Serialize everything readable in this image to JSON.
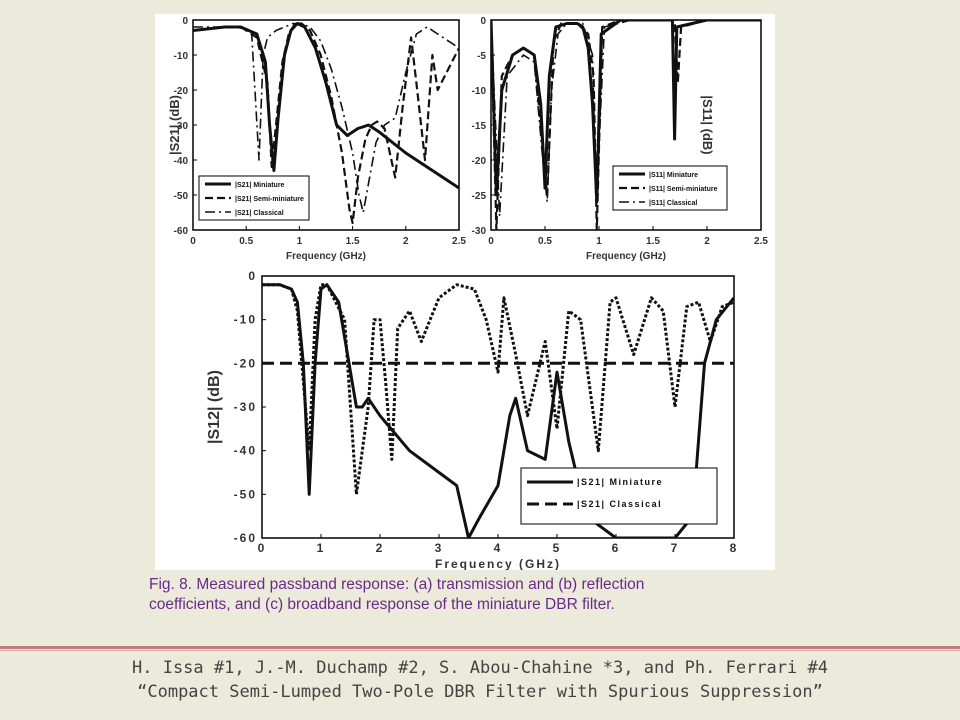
{
  "caption": {
    "line1": "Fig. 8. Measured passband response: (a) transmission and (b) reflection",
    "line2": "coefficients, and (c) broadband response of the miniature DBR filter."
  },
  "authors": {
    "line1": "H. Issa #1, J.-M. Duchamp #2, S. Abou-Chahine *3, and Ph. Ferrari #4",
    "line2": "“Compact Semi-Lumped Two-Pole DBR Filter with Spurious Suppression”"
  },
  "colors": {
    "background": "#ebeadb",
    "caption": "#6a2a8a",
    "divider": "#c47a7a",
    "authors": "#444444"
  },
  "chart_data": [
    {
      "id": "a",
      "type": "line",
      "xlabel": "Frequency (GHz)",
      "ylabel": "|S21| (dB)",
      "xlim": [
        0,
        2.5
      ],
      "ylim": [
        -60,
        0
      ],
      "xticks": [
        "0",
        "0.5",
        "1",
        "1.5",
        "2",
        "2.5"
      ],
      "yticks": [
        "0",
        "-10",
        "-20",
        "-30",
        "-40",
        "-50",
        "-60"
      ],
      "legend": {
        "position": "bottom-left",
        "entries": [
          "|S21| Miniature",
          "|S21| Semi-miniature",
          "|S21| Classical"
        ]
      },
      "series": [
        {
          "name": "|S21| Miniature",
          "style": "solid",
          "x": [
            0,
            0.3,
            0.45,
            0.6,
            0.68,
            0.72,
            0.76,
            0.8,
            0.86,
            0.92,
            0.98,
            1.05,
            1.15,
            1.25,
            1.35,
            1.45,
            1.55,
            1.65,
            1.75,
            2.0,
            2.25,
            2.5
          ],
          "y": [
            -3,
            -2,
            -2,
            -4,
            -12,
            -30,
            -43,
            -28,
            -10,
            -3,
            -1,
            -2,
            -8,
            -18,
            -30,
            -33,
            -31,
            -30,
            -32,
            -38,
            -43,
            -48
          ]
        },
        {
          "name": "|S21| Semi-miniature",
          "style": "dash",
          "x": [
            0,
            0.3,
            0.45,
            0.6,
            0.7,
            0.74,
            0.78,
            0.84,
            0.9,
            0.96,
            1.02,
            1.1,
            1.2,
            1.3,
            1.4,
            1.47,
            1.5,
            1.55,
            1.62,
            1.68,
            1.73,
            1.8,
            1.9,
            1.97,
            2.05,
            2.1,
            2.18,
            2.25,
            2.3,
            2.5
          ],
          "y": [
            -3,
            -2,
            -2,
            -5,
            -18,
            -42,
            -30,
            -12,
            -4,
            -1,
            -1,
            -3,
            -10,
            -22,
            -38,
            -54,
            -58,
            -45,
            -34,
            -30,
            -29,
            -31,
            -45,
            -25,
            -5,
            -18,
            -40,
            -10,
            -20,
            -8
          ]
        },
        {
          "name": "|S21| Classical",
          "style": "dashdot",
          "x": [
            0,
            0.4,
            0.55,
            0.62,
            0.66,
            0.7,
            0.78,
            0.86,
            0.94,
            1.0,
            1.1,
            1.2,
            1.3,
            1.4,
            1.5,
            1.56,
            1.6,
            1.66,
            1.72,
            1.8,
            1.9,
            2.0,
            2.1,
            2.2,
            2.3,
            2.5
          ],
          "y": [
            -2,
            -2,
            -3,
            -40,
            -10,
            -5,
            -3,
            -2,
            -1,
            -1,
            -2,
            -6,
            -14,
            -25,
            -38,
            -50,
            -55,
            -45,
            -35,
            -30,
            -28,
            -15,
            -4,
            -2,
            -4,
            -8
          ]
        }
      ]
    },
    {
      "id": "b",
      "type": "line",
      "xlabel": "Frequency (GHz)",
      "ylabel": "|S11| (dB)",
      "xlim": [
        0,
        2.5
      ],
      "ylim": [
        -30,
        0
      ],
      "xticks": [
        "0",
        "0.5",
        "1",
        "1.5",
        "2",
        "2.5"
      ],
      "yticks": [
        "0",
        "-5",
        "-10",
        "-15",
        "-20",
        "-25",
        "-30"
      ],
      "legend": {
        "position": "bottom-right",
        "entries": [
          "|S11| Miniature",
          "|S11| Semi-miniature",
          "|S11| Classical"
        ]
      },
      "series": [
        {
          "name": "|S11| Miniature",
          "style": "solid",
          "x": [
            0,
            0.02,
            0.05,
            0.1,
            0.2,
            0.3,
            0.4,
            0.46,
            0.5,
            0.54,
            0.6,
            0.7,
            0.8,
            0.85,
            0.9,
            0.94,
            0.98,
            1.02,
            1.2,
            1.5,
            1.68,
            1.7,
            1.72,
            2.0,
            2.5
          ],
          "y": [
            0,
            -10,
            -25,
            -10,
            -5,
            -4,
            -5,
            -12,
            -24,
            -8,
            -1,
            -0.5,
            -0.5,
            -1,
            -4,
            -12,
            -26,
            -2,
            0,
            0,
            0,
            -17,
            -1,
            0,
            0
          ]
        },
        {
          "name": "|S11| Semi-miniature",
          "style": "dash",
          "x": [
            0,
            0.05,
            0.1,
            0.2,
            0.3,
            0.4,
            0.46,
            0.52,
            0.58,
            0.65,
            0.8,
            0.9,
            0.95,
            0.98,
            1.03,
            1.2,
            1.5,
            1.7,
            1.73,
            1.76,
            2.0,
            2.5
          ],
          "y": [
            0,
            -30,
            -8,
            -5,
            -4,
            -5,
            -15,
            -25,
            -3,
            -0.5,
            -0.5,
            -2,
            -8,
            -30,
            -1,
            0,
            0,
            0,
            -9,
            -1,
            0,
            0
          ]
        },
        {
          "name": "|S11| Classical",
          "style": "dashdot",
          "x": [
            0,
            0.08,
            0.15,
            0.3,
            0.4,
            0.48,
            0.52,
            0.56,
            0.62,
            0.7,
            0.85,
            0.94,
            0.97,
            1.0,
            1.05,
            1.3,
            1.5,
            2.0,
            2.4,
            2.5
          ],
          "y": [
            0,
            -28,
            -8,
            -5,
            -6,
            -20,
            -26,
            -10,
            -2,
            -0.5,
            -0.5,
            -5,
            -24,
            -18,
            -1,
            0,
            0,
            0,
            0,
            0
          ]
        }
      ]
    },
    {
      "id": "c",
      "type": "line",
      "xlabel": "Frequency (GHz)",
      "ylabel": "|S12| (dB)",
      "xlim": [
        0,
        8
      ],
      "ylim": [
        -60,
        0
      ],
      "xticks": [
        "0",
        "1",
        "2",
        "3",
        "4",
        "5",
        "6",
        "7",
        "8"
      ],
      "yticks": [
        "0",
        "-10",
        "-20",
        "-30",
        "-40",
        "-50",
        "-60"
      ],
      "legend": {
        "position": "bottom-right",
        "entries": [
          "|S21| Miniature",
          "|S21| Classical"
        ]
      },
      "series": [
        {
          "name": "|S21| Miniature",
          "style": "solid",
          "x": [
            0,
            0.3,
            0.5,
            0.6,
            0.7,
            0.75,
            0.8,
            0.9,
            1.0,
            1.1,
            1.3,
            1.5,
            1.6,
            1.7,
            1.8,
            2.0,
            2.5,
            3.0,
            3.3,
            3.5,
            3.7,
            4.0,
            4.2,
            4.3,
            4.5,
            4.8,
            5.0,
            5.2,
            5.5,
            6.0,
            6.5,
            7.0,
            7.3,
            7.5,
            7.7,
            8.0
          ],
          "y": [
            -2,
            -2,
            -3,
            -6,
            -20,
            -35,
            -50,
            -20,
            -3,
            -2,
            -6,
            -22,
            -30,
            -30,
            -28,
            -32,
            -40,
            -45,
            -48,
            -60,
            -55,
            -48,
            -32,
            -28,
            -40,
            -42,
            -22,
            -38,
            -55,
            -60,
            -60,
            -60,
            -55,
            -20,
            -10,
            -5
          ]
        },
        {
          "name": "|S21| Classical",
          "style": "dash-heavy",
          "x": [
            0,
            8
          ],
          "y": [
            -20,
            -20
          ]
        }
      ],
      "overlay_curve": {
        "style": "dotted-heavy",
        "x": [
          0,
          0.3,
          0.5,
          0.6,
          0.8,
          0.9,
          1.0,
          1.1,
          1.4,
          1.6,
          1.8,
          1.9,
          2.0,
          2.1,
          2.2,
          2.3,
          2.5,
          2.7,
          3.0,
          3.3,
          3.6,
          3.8,
          4.0,
          4.1,
          4.3,
          4.5,
          4.8,
          5.0,
          5.2,
          5.4,
          5.7,
          5.9,
          6.0,
          6.3,
          6.6,
          6.8,
          7.0,
          7.2,
          7.4,
          7.6,
          7.8,
          8.0
        ],
        "y": [
          -2,
          -2,
          -3,
          -8,
          -40,
          -10,
          -2,
          -2,
          -10,
          -50,
          -30,
          -10,
          -10,
          -25,
          -42,
          -12,
          -8,
          -15,
          -5,
          -2,
          -3,
          -10,
          -22,
          -5,
          -18,
          -32,
          -15,
          -35,
          -8,
          -10,
          -40,
          -6,
          -5,
          -18,
          -5,
          -8,
          -30,
          -7,
          -6,
          -15,
          -7,
          -6
        ]
      }
    }
  ]
}
